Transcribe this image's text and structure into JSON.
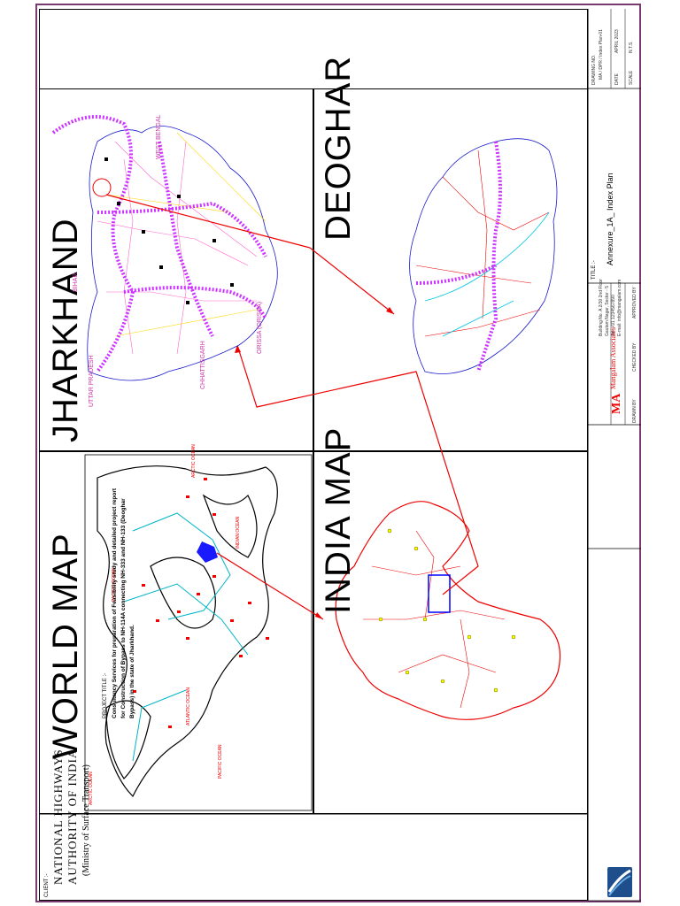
{
  "panels": {
    "world": {
      "title": "WORLD MAP"
    },
    "india": {
      "title": "INDIA MAP"
    },
    "jharkhand": {
      "title": "JHARKHAND"
    },
    "deoghar": {
      "title": "DEOGHAR"
    }
  },
  "world_labels": [
    "ARCTIC OCEAN",
    "PACIFIC OCEAN",
    "ATLANTIC OCEAN",
    "INDIAN OCEAN",
    "PACIFIC OCEAN",
    "ARCTIC OCEAN"
  ],
  "jharkhand_labels": [
    "WEST BENGAL",
    "BIHAR",
    "UTTAR PRADESH",
    "CHHATTISGARH",
    "ORISSA (ORISSA)"
  ],
  "client": {
    "label": "CLIENT :-",
    "org_line1": "NATIONAL HIGHWAYS",
    "org_line2": "AUTHORITY OF INDIA",
    "org_line3": "(Ministry of Surface Transport)"
  },
  "project": {
    "label": "PROJECT TITLE :-",
    "line1": "Consultancy Services for preparation of Feasibility study and detailed project report",
    "line2": "for Construction of Bypass to NH-114A connecting NH-333 and NH-133 (Deoghar",
    "line3": "Bypass) in the state of Jharkhand."
  },
  "consultant": {
    "name": "Mangalam Associates",
    "address1": "Building No. A 2/30 2nd Floor",
    "address2": "Gautam Nagar, Sector - 5",
    "address3": "Tel: +91 1234567890",
    "address4": "E-mail: info@mangalam.com"
  },
  "title": {
    "label": "TITLE :-",
    "value": "Annexure_1A_ Index Plan"
  },
  "drawing": {
    "no_label": "DRAWING NO.",
    "no_value": "MA / DPR / Index Plan-01",
    "date_label": "DATE",
    "date_value": "APRIL 2023",
    "scale_label": "SCALE",
    "scale_value": "N.T.S."
  },
  "signatures": [
    "DRAWN BY",
    "CHECKED BY",
    "APPROVED BY"
  ]
}
